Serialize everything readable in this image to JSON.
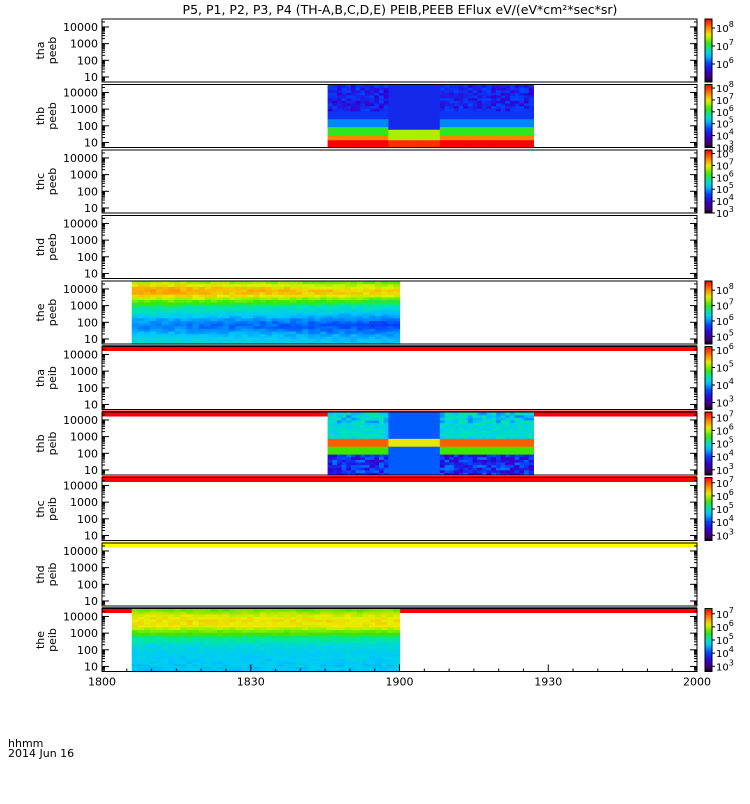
{
  "chart_data": {
    "type": "heatmap",
    "title": "P5, P1, P2, P3, P4 (TH-A,B,C,D,E) PEIB,PEEB EFlux eV/(eV*cm²*sec*sr)",
    "x_axis": {
      "ticks": [
        "1800",
        "1830",
        "1900",
        "1930",
        "2000"
      ],
      "label_line1": "hhmm",
      "label_line2": "2014 Jun 16",
      "range_minutes": [
        0,
        120
      ]
    },
    "y_axis": {
      "scale": "log",
      "range": [
        5,
        30000
      ],
      "tick_labels": [
        "10",
        "100",
        "1000",
        "10000"
      ],
      "unit": "eV"
    },
    "colorbar_scale": "log",
    "panels": [
      {
        "probe": "tha",
        "product": "peeb",
        "label1": "tha",
        "label2": "peeb",
        "colorbar_ticks": [
          {
            "m": "10",
            "e": "6"
          },
          {
            "m": "10",
            "e": "7"
          },
          {
            "m": "10",
            "e": "8"
          }
        ],
        "colorbar_range": [
          5.0,
          8.5
        ],
        "data_intervals": [],
        "status_bar": null
      },
      {
        "probe": "thb",
        "product": "peeb",
        "label1": "thb",
        "label2": "peeb",
        "colorbar_ticks": [
          {
            "m": "10",
            "e": "3"
          },
          {
            "m": "10",
            "e": "4"
          },
          {
            "m": "10",
            "e": "5"
          },
          {
            "m": "10",
            "e": "6"
          },
          {
            "m": "10",
            "e": "7"
          },
          {
            "m": "10",
            "e": "8"
          }
        ],
        "colorbar_range": [
          3.0,
          8.3
        ],
        "data_intervals": [
          [
            45.5,
            87.0
          ]
        ],
        "status_bar": null
      },
      {
        "probe": "thc",
        "product": "peeb",
        "label1": "thc",
        "label2": "peeb",
        "colorbar_ticks": [
          {
            "m": "10",
            "e": "3"
          },
          {
            "m": "10",
            "e": "4"
          },
          {
            "m": "10",
            "e": "5"
          },
          {
            "m": "10",
            "e": "6"
          },
          {
            "m": "10",
            "e": "7"
          },
          {
            "m": "10",
            "e": "8"
          }
        ],
        "colorbar_range": [
          3.0,
          8.3
        ],
        "data_intervals": [],
        "status_bar": null
      },
      {
        "probe": "thd",
        "product": "peeb",
        "label1": "thd",
        "label2": "peeb",
        "colorbar_ticks": [],
        "colorbar_range": null,
        "data_intervals": [],
        "status_bar": null
      },
      {
        "probe": "the",
        "product": "peeb",
        "label1": "the",
        "label2": "peeb",
        "colorbar_ticks": [
          {
            "m": "10",
            "e": "5"
          },
          {
            "m": "10",
            "e": "6"
          },
          {
            "m": "10",
            "e": "7"
          },
          {
            "m": "10",
            "e": "8"
          }
        ],
        "colorbar_range": [
          4.5,
          8.6
        ],
        "data_intervals": [
          [
            6.0,
            60.0
          ]
        ],
        "status_bar": "#ff0000"
      },
      {
        "probe": "tha",
        "product": "peib",
        "label1": "tha",
        "label2": "peib",
        "colorbar_ticks": [
          {
            "m": "10",
            "e": "3"
          },
          {
            "m": "10",
            "e": "4"
          },
          {
            "m": "10",
            "e": "5"
          },
          {
            "m": "10",
            "e": "6"
          }
        ],
        "colorbar_range": [
          2.6,
          6.2
        ],
        "data_intervals": [],
        "status_bar": "#ff0000"
      },
      {
        "probe": "thb",
        "product": "peib",
        "label1": "thb",
        "label2": "peib",
        "colorbar_ticks": [
          {
            "m": "10",
            "e": "3"
          },
          {
            "m": "10",
            "e": "4"
          },
          {
            "m": "10",
            "e": "5"
          },
          {
            "m": "10",
            "e": "6"
          },
          {
            "m": "10",
            "e": "7"
          }
        ],
        "colorbar_range": [
          2.6,
          7.4
        ],
        "data_intervals": [
          [
            45.5,
            87.0
          ]
        ],
        "status_bar": "#ff0000"
      },
      {
        "probe": "thc",
        "product": "peib",
        "label1": "thc",
        "label2": "peib",
        "colorbar_ticks": [
          {
            "m": "10",
            "e": "3"
          },
          {
            "m": "10",
            "e": "4"
          },
          {
            "m": "10",
            "e": "5"
          },
          {
            "m": "10",
            "e": "6"
          },
          {
            "m": "10",
            "e": "7"
          }
        ],
        "colorbar_range": [
          2.6,
          7.4
        ],
        "data_intervals": [],
        "status_bar": "#ffff00"
      },
      {
        "probe": "thd",
        "product": "peib",
        "label1": "thd",
        "label2": "peib",
        "colorbar_ticks": [],
        "colorbar_range": null,
        "data_intervals": [],
        "status_bar": "#ff0000"
      },
      {
        "probe": "the",
        "product": "peib",
        "label1": "the",
        "label2": "peib",
        "colorbar_ticks": [
          {
            "m": "10",
            "e": "3"
          },
          {
            "m": "10",
            "e": "4"
          },
          {
            "m": "10",
            "e": "5"
          },
          {
            "m": "10",
            "e": "6"
          },
          {
            "m": "10",
            "e": "7"
          }
        ],
        "colorbar_range": [
          2.6,
          7.4
        ],
        "data_intervals": [
          [
            6.0,
            60.0
          ]
        ],
        "status_bar": null
      }
    ]
  },
  "colors": {
    "background": "#ffffff",
    "axis": "#000000",
    "red_status": "#ff0000",
    "yellow_status": "#ffff00"
  }
}
